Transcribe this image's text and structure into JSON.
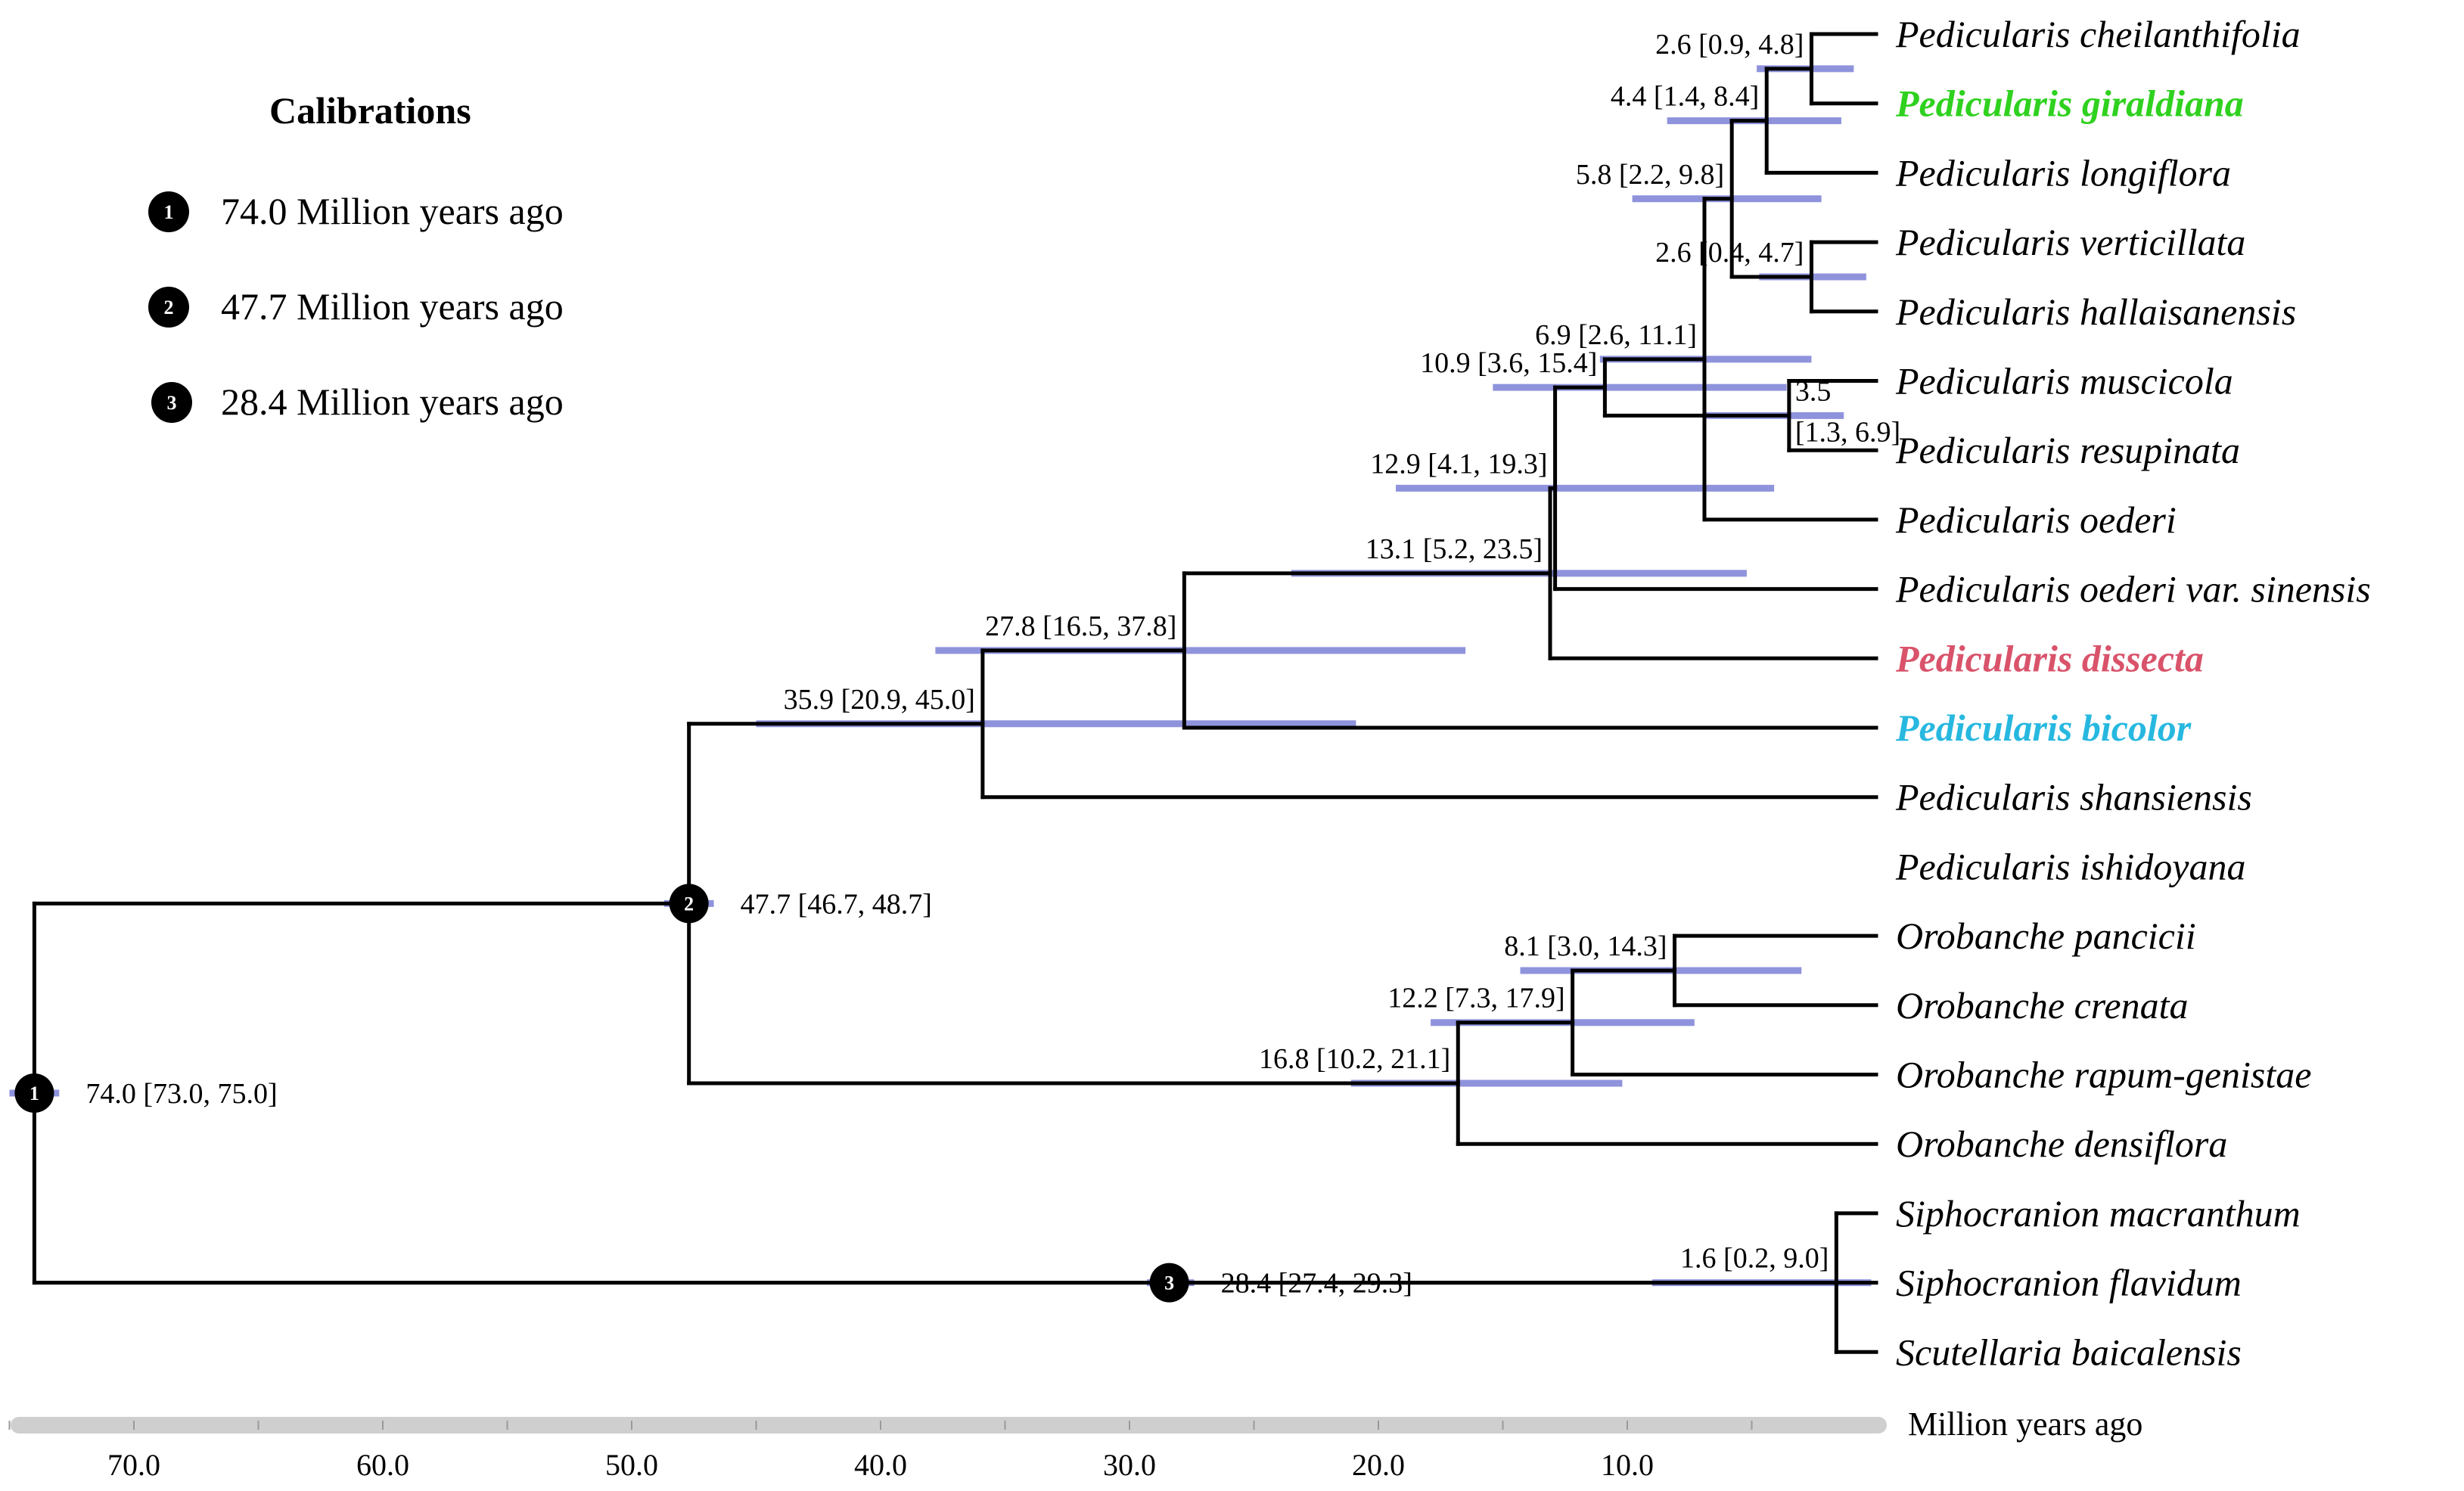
{
  "legend": {
    "title": "Calibrations",
    "items": [
      {
        "marker": "1",
        "label": "74.0 Million years ago"
      },
      {
        "marker": "2",
        "label": "47.7 Million years ago"
      },
      {
        "marker": "3",
        "label": "28.4 Million years ago"
      }
    ]
  },
  "axis": {
    "title": "Million years ago",
    "min": 0,
    "max": 76,
    "ticks": [
      {
        "value": 70,
        "label": "70.0"
      },
      {
        "value": 60,
        "label": "60.0"
      },
      {
        "value": 50,
        "label": "50.0"
      },
      {
        "value": 40,
        "label": "40.0"
      },
      {
        "value": 30,
        "label": "30.0"
      },
      {
        "value": 20,
        "label": "20.0"
      },
      {
        "value": 10,
        "label": "10.0"
      }
    ]
  },
  "colors": {
    "branch": "#000000",
    "hpd_bar": "#8f93dc",
    "highlight_green": "#2fd11f",
    "highlight_red": "#d9536b",
    "highlight_blue": "#27b8e0"
  },
  "tree": {
    "taxa": [
      {
        "name": "Pedicularis cheilanthifolia"
      },
      {
        "name": "Pedicularis giraldiana",
        "color": "#2fd11f",
        "bold": true
      },
      {
        "name": "Pedicularis longiflora"
      },
      {
        "name": "Pedicularis verticillata"
      },
      {
        "name": "Pedicularis hallaisanensis"
      },
      {
        "name": "Pedicularis muscicola"
      },
      {
        "name": "Pedicularis resupinata"
      },
      {
        "name": "Pedicularis oederi"
      },
      {
        "name": "Pedicularis oederi var. sinensis"
      },
      {
        "name": "Pedicularis dissecta",
        "color": "#d9536b",
        "bold": true
      },
      {
        "name": "Pedicularis bicolor",
        "color": "#27b8e0",
        "bold": true
      },
      {
        "name": "Pedicularis shansiensis"
      },
      {
        "name": "Pedicularis ishidoyana"
      },
      {
        "name": "Orobanche pancicii"
      },
      {
        "name": "Orobanche crenata"
      },
      {
        "name": "Orobanche rapum-genistae"
      },
      {
        "name": "Orobanche densiflora"
      },
      {
        "name": "Siphocranion macranthum"
      },
      {
        "name": "Siphocranion flavidum"
      },
      {
        "name": "Scutellaria baicalensis"
      }
    ],
    "nodes": [
      {
        "id": "n1",
        "age": 74.0,
        "hpd": [
          73.0,
          75.0
        ],
        "children": [
          "n2",
          "n3"
        ],
        "label": "74.0 [73.0, 75.0]",
        "calibration": "1"
      },
      {
        "id": "n2",
        "age": 47.7,
        "hpd": [
          46.7,
          48.7
        ],
        "children": [
          "n4",
          "n5"
        ],
        "label": "47.7 [46.7, 48.7]",
        "calibration": "2"
      },
      {
        "id": "n3",
        "age": 28.4,
        "hpd": [
          27.4,
          29.3
        ],
        "children": [
          "n6",
          "t19"
        ],
        "label": "28.4 [27.4, 29.3]",
        "calibration": "3"
      },
      {
        "id": "n4",
        "age": 35.9,
        "hpd": [
          20.9,
          45.0
        ],
        "children": [
          "n7",
          "t12"
        ],
        "label": "35.9 [20.9, 45.0]"
      },
      {
        "id": "n7",
        "age": 27.8,
        "hpd": [
          16.5,
          37.8
        ],
        "children": [
          "n8",
          "t11"
        ],
        "label": "27.8 [16.5, 37.8]"
      },
      {
        "id": "n8",
        "age": 13.1,
        "hpd": [
          5.2,
          23.5
        ],
        "children": [
          "n9",
          "t10"
        ],
        "label": "13.1 [5.2, 23.5]"
      },
      {
        "id": "n9",
        "age": 12.9,
        "hpd": [
          4.1,
          19.3
        ],
        "children": [
          "n10",
          "t9"
        ],
        "label": "12.9 [4.1, 19.3]"
      },
      {
        "id": "n10",
        "age": 10.9,
        "hpd": [
          3.6,
          15.4
        ],
        "children": [
          "n11",
          "n12"
        ],
        "label": "10.9 [3.6, 15.4]"
      },
      {
        "id": "n11",
        "age": 6.9,
        "hpd": [
          2.6,
          11.1
        ],
        "children": [
          "n13",
          "t8"
        ],
        "label": "6.9 [2.6, 11.1]"
      },
      {
        "id": "n13",
        "age": 5.8,
        "hpd": [
          2.2,
          9.8
        ],
        "children": [
          "n14",
          "n15"
        ],
        "label": "5.8 [2.2, 9.8]"
      },
      {
        "id": "n14",
        "age": 4.4,
        "hpd": [
          1.4,
          8.4
        ],
        "children": [
          "n16",
          "t3"
        ],
        "label": "4.4 [1.4, 8.4]"
      },
      {
        "id": "n16",
        "age": 2.6,
        "hpd": [
          0.9,
          4.8
        ],
        "children": [
          "t1",
          "t2"
        ],
        "label": "2.6 [0.9, 4.8]"
      },
      {
        "id": "n15",
        "age": 2.6,
        "hpd": [
          0.4,
          4.7
        ],
        "children": [
          "t4",
          "t5"
        ],
        "label": "2.6 [0.4, 4.7]"
      },
      {
        "id": "n12",
        "age": 3.5,
        "hpd": [
          1.3,
          6.9
        ],
        "children": [
          "t6",
          "t7"
        ],
        "label": "3.5",
        "label2": "[1.3, 6.9]"
      },
      {
        "id": "n5",
        "age": 16.8,
        "hpd": [
          10.2,
          21.1
        ],
        "children": [
          "n17",
          "t17"
        ],
        "label": "16.8 [10.2, 21.1]"
      },
      {
        "id": "n17",
        "age": 12.2,
        "hpd": [
          7.3,
          17.9
        ],
        "children": [
          "n18",
          "t16"
        ],
        "label": "12.2 [7.3, 17.9]"
      },
      {
        "id": "n18",
        "age": 8.1,
        "hpd": [
          3.0,
          14.3
        ],
        "children": [
          "t14",
          "t15"
        ],
        "label": "8.1 [3.0, 14.3]"
      },
      {
        "id": "n6",
        "age": 1.6,
        "hpd": [
          0.2,
          9.0
        ],
        "children": [
          "t18",
          "t20"
        ],
        "label": "1.6 [0.2, 9.0]"
      }
    ],
    "leaf_order": [
      "t1",
      "t2",
      "t3",
      "t4",
      "t5",
      "t6",
      "t7",
      "t8",
      "t9",
      "t10",
      "t11",
      "t12",
      "t13",
      "t14",
      "t15",
      "t16",
      "t17",
      "t18",
      "t19",
      "t20"
    ]
  }
}
